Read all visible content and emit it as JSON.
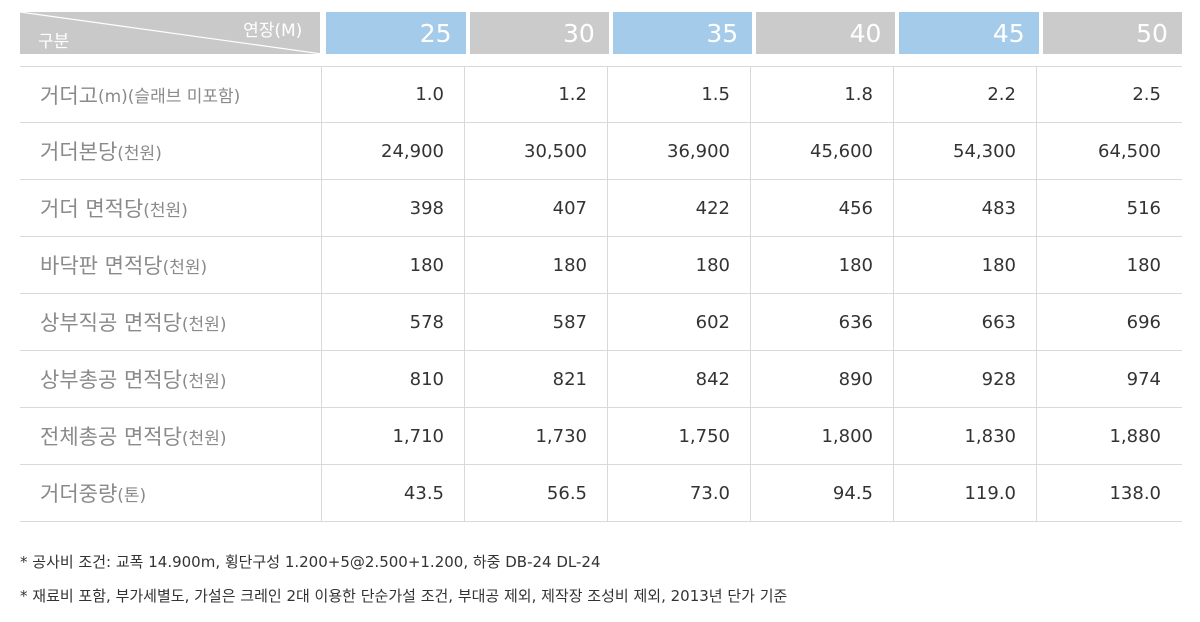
{
  "header": {
    "corner_left": "구분",
    "corner_right": "연장(M)",
    "columns": [
      "25",
      "30",
      "35",
      "40",
      "45",
      "50"
    ],
    "column_styles": [
      "blue",
      "gray",
      "blue",
      "gray",
      "blue",
      "gray"
    ]
  },
  "rows": [
    {
      "label": "거더고",
      "unit": "(m)(슬래브 미포함)",
      "values": [
        "1.0",
        "1.2",
        "1.5",
        "1.8",
        "2.2",
        "2.5"
      ]
    },
    {
      "label": "거더본당",
      "unit": "(천원)",
      "values": [
        "24,900",
        "30,500",
        "36,900",
        "45,600",
        "54,300",
        "64,500"
      ]
    },
    {
      "label": "거더 면적당",
      "unit": "(천원)",
      "values": [
        "398",
        "407",
        "422",
        "456",
        "483",
        "516"
      ]
    },
    {
      "label": "바닥판 면적당",
      "unit": "(천원)",
      "values": [
        "180",
        "180",
        "180",
        "180",
        "180",
        "180"
      ]
    },
    {
      "label": "상부직공 면적당",
      "unit": "(천원)",
      "values": [
        "578",
        "587",
        "602",
        "636",
        "663",
        "696"
      ]
    },
    {
      "label": "상부총공 면적당",
      "unit": "(천원)",
      "values": [
        "810",
        "821",
        "842",
        "890",
        "928",
        "974"
      ]
    },
    {
      "label": "전체총공 면적당",
      "unit": "(천원)",
      "values": [
        "1,710",
        "1,730",
        "1,750",
        "1,800",
        "1,830",
        "1,880"
      ]
    },
    {
      "label": "거더중량",
      "unit": "(톤)",
      "values": [
        "43.5",
        "56.5",
        "73.0",
        "94.5",
        "119.0",
        "138.0"
      ]
    }
  ],
  "notes": [
    "* 공사비 조건: 교폭 14.900m, 횡단구성 1.200+5@2.500+1.200, 하중 DB-24 DL-24",
    "* 재료비 포함, 부가세별도, 가설은 크레인 2대 이용한 단순가설 조건, 부대공 제외, 제작장 조성비 제외, 2013년 단가 기준"
  ],
  "colors": {
    "header_blue": "#a5cbea",
    "header_gray": "#cbcbcb",
    "label_text": "#8a8a8a"
  }
}
